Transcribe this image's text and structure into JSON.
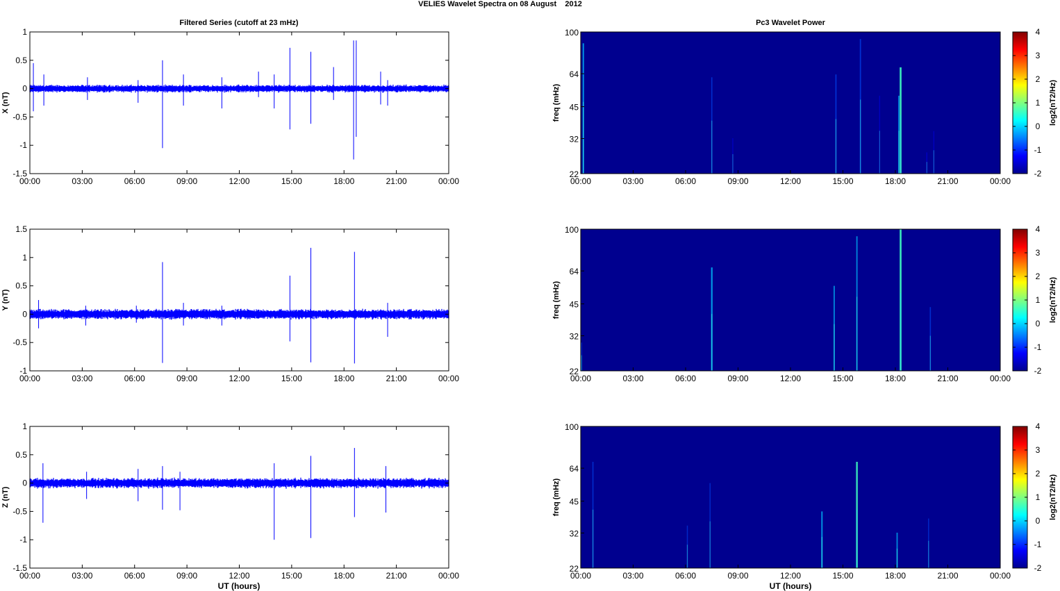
{
  "figure_title": "VELIES Wavelet Spectra on 08 August    2012",
  "left_title": "Filtered Series (cutoff at 23 mHz)",
  "right_title": "Pc3 Wavelet Power",
  "xlabel": "UT (hours)",
  "freq_label": "freq (mHz)",
  "cb_label": "log2(nT2/Hz)",
  "time_ticks": [
    "00:00",
    "03:00",
    "06:00",
    "09:00",
    "12:00",
    "15:00",
    "18:00",
    "21:00",
    "00:00"
  ],
  "freq_ticks": [
    "22",
    "32",
    "45",
    "64",
    "100"
  ],
  "cb_ticks": [
    "-2",
    "-1",
    "0",
    "1",
    "2",
    "3",
    "4"
  ],
  "colors": {
    "series": "#0000ff",
    "spectrum_bg": "#00008f",
    "axis": "#000000"
  },
  "chart_data": [
    {
      "type": "line",
      "title": "Filtered Series (cutoff at 23 mHz)",
      "ylabel": "X (nT)",
      "xlim": [
        0,
        24
      ],
      "ylim": [
        -1.5,
        1
      ],
      "yticks": [
        "1",
        "0.5",
        "0",
        "-0.5",
        "-1",
        "-1.5"
      ],
      "noise_amplitude": 0.06,
      "spikes": [
        [
          0.2,
          0.45,
          -0.4
        ],
        [
          0.8,
          0.25,
          -0.3
        ],
        [
          3.3,
          0.2,
          -0.2
        ],
        [
          6.2,
          0.15,
          -0.25
        ],
        [
          7.6,
          0.5,
          -1.05
        ],
        [
          8.8,
          0.25,
          -0.3
        ],
        [
          11.0,
          0.2,
          -0.35
        ],
        [
          13.1,
          0.3,
          -0.15
        ],
        [
          14.0,
          0.25,
          -0.35
        ],
        [
          14.9,
          0.72,
          -0.72
        ],
        [
          16.1,
          0.65,
          -0.62
        ],
        [
          17.4,
          0.38,
          -0.2
        ],
        [
          18.55,
          0.85,
          -1.25
        ],
        [
          18.7,
          0.85,
          -0.85
        ],
        [
          20.1,
          0.3,
          -0.28
        ],
        [
          20.5,
          0.15,
          -0.3
        ]
      ]
    },
    {
      "type": "line",
      "ylabel": "Y (nT)",
      "xlim": [
        0,
        24
      ],
      "ylim": [
        -1,
        1.5
      ],
      "yticks": [
        "1.5",
        "1",
        "0.5",
        "0",
        "-0.5",
        "-1"
      ],
      "noise_amplitude": 0.08,
      "spikes": [
        [
          0.5,
          0.25,
          -0.25
        ],
        [
          3.2,
          0.15,
          -0.2
        ],
        [
          6.1,
          0.15,
          -0.15
        ],
        [
          7.6,
          0.92,
          -0.86
        ],
        [
          8.8,
          0.2,
          -0.2
        ],
        [
          11.0,
          0.15,
          -0.2
        ],
        [
          14.9,
          0.68,
          -0.48
        ],
        [
          16.1,
          1.17,
          -0.85
        ],
        [
          18.6,
          1.1,
          -0.87
        ],
        [
          20.5,
          0.2,
          -0.4
        ]
      ]
    },
    {
      "type": "line",
      "xlabel": "UT (hours)",
      "ylabel": "Z (nT)",
      "xlim": [
        0,
        24
      ],
      "ylim": [
        -1.5,
        1
      ],
      "yticks": [
        "1",
        "0.5",
        "0",
        "-0.5",
        "-1",
        "-1.5"
      ],
      "noise_amplitude": 0.08,
      "spikes": [
        [
          0.75,
          0.35,
          -0.7
        ],
        [
          3.25,
          0.2,
          -0.28
        ],
        [
          6.2,
          0.25,
          -0.32
        ],
        [
          7.6,
          0.3,
          -0.47
        ],
        [
          8.6,
          0.2,
          -0.48
        ],
        [
          14.0,
          0.35,
          -1.0
        ],
        [
          16.1,
          0.48,
          -0.97
        ],
        [
          18.6,
          0.62,
          -0.6
        ],
        [
          20.4,
          0.3,
          -0.52
        ]
      ]
    },
    {
      "type": "heatmap",
      "title": "Pc3 Wavelet Power",
      "ylabel": "freq (mHz)",
      "ylim": [
        22,
        100
      ],
      "clim": [
        -2,
        4
      ],
      "bursts": [
        [
          0.15,
          0.92,
          0.05,
          0.35
        ],
        [
          7.5,
          0.68,
          0.08,
          0.2
        ],
        [
          8.7,
          0.25,
          0.25,
          0.1
        ],
        [
          14.6,
          0.7,
          0.12,
          0.25
        ],
        [
          16.0,
          0.95,
          0.15,
          0.25
        ],
        [
          17.1,
          0.55,
          0.2,
          0.1
        ],
        [
          18.3,
          0.75,
          0.05,
          0.55
        ],
        [
          18.2,
          0.55,
          0.25,
          0.3
        ],
        [
          19.8,
          0.15,
          0.25,
          0.12
        ],
        [
          20.2,
          0.3,
          0.2,
          0.1
        ]
      ]
    },
    {
      "type": "heatmap",
      "ylabel": "freq (mHz)",
      "ylim": [
        22,
        100
      ],
      "clim": [
        -2,
        4
      ],
      "bursts": [
        [
          7.5,
          0.73,
          0.05,
          0.4
        ],
        [
          14.5,
          0.6,
          0.08,
          0.3
        ],
        [
          15.8,
          0.95,
          0.05,
          0.3
        ],
        [
          18.3,
          1.0,
          0.05,
          0.55
        ],
        [
          20.0,
          0.45,
          0.1,
          0.2
        ],
        [
          0.05,
          0.2,
          0.3,
          0.15
        ]
      ]
    },
    {
      "type": "heatmap",
      "xlabel": "UT (hours)",
      "ylabel": "freq (mHz)",
      "ylim": [
        22,
        100
      ],
      "clim": [
        -2,
        4
      ],
      "bursts": [
        [
          0.7,
          0.75,
          0.05,
          0.2
        ],
        [
          6.1,
          0.3,
          0.15,
          0.15
        ],
        [
          7.4,
          0.6,
          0.15,
          0.15
        ],
        [
          13.8,
          0.4,
          0.08,
          0.35
        ],
        [
          15.8,
          0.75,
          0.05,
          0.5
        ],
        [
          18.1,
          0.25,
          0.1,
          0.3
        ],
        [
          19.9,
          0.35,
          0.1,
          0.15
        ]
      ]
    }
  ]
}
